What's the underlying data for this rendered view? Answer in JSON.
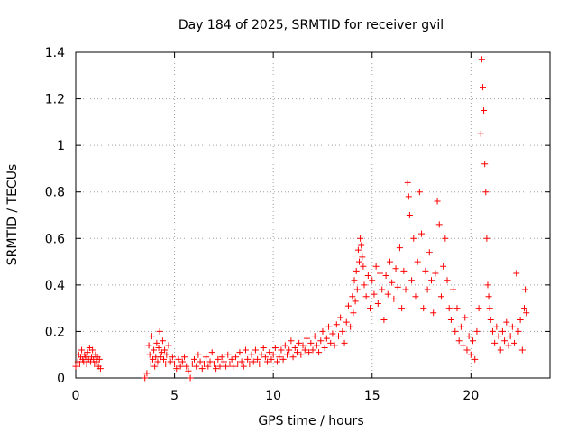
{
  "chart_data": {
    "type": "scatter",
    "title": "Day 184 of 2025, SRMTID for receiver gvil",
    "xlabel": "GPS time / hours",
    "ylabel": "SRMTID / TECUs",
    "xlim": [
      0,
      24
    ],
    "ylim": [
      0,
      1.4
    ],
    "xticks": [
      0,
      5,
      10,
      15,
      20
    ],
    "xtick_labels": [
      "0",
      "5",
      "10",
      "15",
      "20"
    ],
    "yticks": [
      0,
      0.2,
      0.4,
      0.6,
      0.8,
      1.0,
      1.2,
      1.4
    ],
    "ytick_labels": [
      "0",
      "0.2",
      "0.4",
      "0.6",
      "0.8",
      "1",
      "1.2",
      "1.4"
    ],
    "grid": true,
    "marker": "+",
    "color": "#ff0000",
    "series": [
      {
        "name": "SRMTID",
        "points": [
          [
            0.0,
            0.05
          ],
          [
            0.1,
            0.07
          ],
          [
            0.15,
            0.1
          ],
          [
            0.2,
            0.06
          ],
          [
            0.25,
            0.09
          ],
          [
            0.3,
            0.12
          ],
          [
            0.35,
            0.08
          ],
          [
            0.4,
            0.07
          ],
          [
            0.45,
            0.1
          ],
          [
            0.5,
            0.09
          ],
          [
            0.55,
            0.06
          ],
          [
            0.6,
            0.11
          ],
          [
            0.65,
            0.08
          ],
          [
            0.7,
            0.13
          ],
          [
            0.75,
            0.07
          ],
          [
            0.8,
            0.09
          ],
          [
            0.85,
            0.12
          ],
          [
            0.9,
            0.08
          ],
          [
            0.95,
            0.06
          ],
          [
            1.0,
            0.1
          ],
          [
            1.05,
            0.07
          ],
          [
            1.1,
            0.09
          ],
          [
            1.15,
            0.05
          ],
          [
            1.2,
            0.08
          ],
          [
            1.25,
            0.04
          ],
          [
            3.5,
            0.0
          ],
          [
            3.6,
            0.02
          ],
          [
            3.7,
            0.14
          ],
          [
            3.75,
            0.1
          ],
          [
            3.8,
            0.06
          ],
          [
            3.85,
            0.18
          ],
          [
            3.9,
            0.08
          ],
          [
            3.95,
            0.12
          ],
          [
            4.0,
            0.05
          ],
          [
            4.05,
            0.09
          ],
          [
            4.1,
            0.15
          ],
          [
            4.15,
            0.07
          ],
          [
            4.2,
            0.13
          ],
          [
            4.25,
            0.2
          ],
          [
            4.3,
            0.09
          ],
          [
            4.35,
            0.11
          ],
          [
            4.4,
            0.16
          ],
          [
            4.45,
            0.08
          ],
          [
            4.5,
            0.12
          ],
          [
            4.55,
            0.06
          ],
          [
            4.6,
            0.1
          ],
          [
            4.7,
            0.14
          ],
          [
            4.8,
            0.07
          ],
          [
            4.9,
            0.09
          ],
          [
            5.0,
            0.06
          ],
          [
            5.1,
            0.04
          ],
          [
            5.2,
            0.08
          ],
          [
            5.3,
            0.05
          ],
          [
            5.4,
            0.07
          ],
          [
            5.5,
            0.09
          ],
          [
            5.6,
            0.05
          ],
          [
            5.7,
            0.03
          ],
          [
            5.8,
            0.0
          ],
          [
            5.9,
            0.06
          ],
          [
            6.0,
            0.08
          ],
          [
            6.1,
            0.05
          ],
          [
            6.2,
            0.1
          ],
          [
            6.3,
            0.07
          ],
          [
            6.4,
            0.04
          ],
          [
            6.5,
            0.06
          ],
          [
            6.6,
            0.09
          ],
          [
            6.7,
            0.05
          ],
          [
            6.8,
            0.07
          ],
          [
            6.9,
            0.11
          ],
          [
            7.0,
            0.06
          ],
          [
            7.1,
            0.04
          ],
          [
            7.2,
            0.08
          ],
          [
            7.3,
            0.05
          ],
          [
            7.4,
            0.09
          ],
          [
            7.5,
            0.07
          ],
          [
            7.6,
            0.05
          ],
          [
            7.7,
            0.1
          ],
          [
            7.8,
            0.06
          ],
          [
            7.9,
            0.08
          ],
          [
            8.0,
            0.05
          ],
          [
            8.1,
            0.09
          ],
          [
            8.2,
            0.06
          ],
          [
            8.3,
            0.11
          ],
          [
            8.4,
            0.07
          ],
          [
            8.5,
            0.05
          ],
          [
            8.6,
            0.12
          ],
          [
            8.7,
            0.08
          ],
          [
            8.8,
            0.06
          ],
          [
            8.9,
            0.1
          ],
          [
            9.0,
            0.07
          ],
          [
            9.1,
            0.12
          ],
          [
            9.2,
            0.08
          ],
          [
            9.3,
            0.06
          ],
          [
            9.4,
            0.1
          ],
          [
            9.5,
            0.13
          ],
          [
            9.6,
            0.09
          ],
          [
            9.7,
            0.07
          ],
          [
            9.8,
            0.11
          ],
          [
            9.9,
            0.08
          ],
          [
            10.0,
            0.1
          ],
          [
            10.1,
            0.13
          ],
          [
            10.2,
            0.07
          ],
          [
            10.3,
            0.09
          ],
          [
            10.4,
            0.12
          ],
          [
            10.5,
            0.08
          ],
          [
            10.6,
            0.14
          ],
          [
            10.7,
            0.1
          ],
          [
            10.8,
            0.12
          ],
          [
            10.9,
            0.16
          ],
          [
            11.0,
            0.09
          ],
          [
            11.1,
            0.13
          ],
          [
            11.2,
            0.11
          ],
          [
            11.3,
            0.15
          ],
          [
            11.4,
            0.1
          ],
          [
            11.5,
            0.14
          ],
          [
            11.6,
            0.12
          ],
          [
            11.7,
            0.17
          ],
          [
            11.8,
            0.11
          ],
          [
            11.9,
            0.15
          ],
          [
            12.0,
            0.12
          ],
          [
            12.1,
            0.18
          ],
          [
            12.2,
            0.14
          ],
          [
            12.3,
            0.11
          ],
          [
            12.4,
            0.16
          ],
          [
            12.5,
            0.2
          ],
          [
            12.6,
            0.13
          ],
          [
            12.7,
            0.17
          ],
          [
            12.8,
            0.22
          ],
          [
            12.9,
            0.15
          ],
          [
            13.0,
            0.19
          ],
          [
            13.1,
            0.14
          ],
          [
            13.2,
            0.23
          ],
          [
            13.3,
            0.18
          ],
          [
            13.4,
            0.26
          ],
          [
            13.5,
            0.2
          ],
          [
            13.6,
            0.15
          ],
          [
            13.7,
            0.24
          ],
          [
            13.8,
            0.31
          ],
          [
            13.9,
            0.22
          ],
          [
            14.0,
            0.35
          ],
          [
            14.05,
            0.28
          ],
          [
            14.1,
            0.42
          ],
          [
            14.15,
            0.33
          ],
          [
            14.2,
            0.46
          ],
          [
            14.25,
            0.38
          ],
          [
            14.3,
            0.55
          ],
          [
            14.35,
            0.5
          ],
          [
            14.4,
            0.6
          ],
          [
            14.45,
            0.57
          ],
          [
            14.5,
            0.52
          ],
          [
            14.55,
            0.48
          ],
          [
            14.6,
            0.4
          ],
          [
            14.7,
            0.35
          ],
          [
            14.8,
            0.44
          ],
          [
            14.9,
            0.3
          ],
          [
            15.0,
            0.42
          ],
          [
            15.1,
            0.36
          ],
          [
            15.2,
            0.48
          ],
          [
            15.3,
            0.32
          ],
          [
            15.4,
            0.45
          ],
          [
            15.5,
            0.38
          ],
          [
            15.6,
            0.25
          ],
          [
            15.7,
            0.44
          ],
          [
            15.8,
            0.36
          ],
          [
            15.9,
            0.5
          ],
          [
            16.0,
            0.41
          ],
          [
            16.1,
            0.34
          ],
          [
            16.2,
            0.47
          ],
          [
            16.3,
            0.39
          ],
          [
            16.4,
            0.56
          ],
          [
            16.5,
            0.3
          ],
          [
            16.6,
            0.46
          ],
          [
            16.7,
            0.38
          ],
          [
            16.8,
            0.84
          ],
          [
            16.85,
            0.78
          ],
          [
            16.9,
            0.7
          ],
          [
            17.0,
            0.42
          ],
          [
            17.1,
            0.6
          ],
          [
            17.2,
            0.35
          ],
          [
            17.3,
            0.5
          ],
          [
            17.4,
            0.8
          ],
          [
            17.5,
            0.62
          ],
          [
            17.6,
            0.3
          ],
          [
            17.7,
            0.46
          ],
          [
            17.8,
            0.38
          ],
          [
            17.9,
            0.54
          ],
          [
            18.0,
            0.42
          ],
          [
            18.1,
            0.28
          ],
          [
            18.2,
            0.45
          ],
          [
            18.3,
            0.76
          ],
          [
            18.4,
            0.66
          ],
          [
            18.5,
            0.35
          ],
          [
            18.6,
            0.48
          ],
          [
            18.7,
            0.6
          ],
          [
            18.8,
            0.42
          ],
          [
            18.9,
            0.3
          ],
          [
            19.0,
            0.25
          ],
          [
            19.1,
            0.38
          ],
          [
            19.2,
            0.2
          ],
          [
            19.3,
            0.3
          ],
          [
            19.4,
            0.16
          ],
          [
            19.5,
            0.22
          ],
          [
            19.6,
            0.14
          ],
          [
            19.7,
            0.26
          ],
          [
            19.8,
            0.12
          ],
          [
            19.9,
            0.18
          ],
          [
            20.0,
            0.1
          ],
          [
            20.1,
            0.16
          ],
          [
            20.2,
            0.08
          ],
          [
            20.3,
            0.2
          ],
          [
            20.4,
            0.3
          ],
          [
            20.5,
            1.05
          ],
          [
            20.55,
            1.37
          ],
          [
            20.6,
            1.25
          ],
          [
            20.65,
            1.15
          ],
          [
            20.7,
            0.92
          ],
          [
            20.75,
            0.8
          ],
          [
            20.8,
            0.6
          ],
          [
            20.85,
            0.4
          ],
          [
            20.9,
            0.35
          ],
          [
            20.95,
            0.3
          ],
          [
            21.0,
            0.25
          ],
          [
            21.1,
            0.2
          ],
          [
            21.2,
            0.15
          ],
          [
            21.3,
            0.22
          ],
          [
            21.4,
            0.18
          ],
          [
            21.5,
            0.12
          ],
          [
            21.6,
            0.2
          ],
          [
            21.7,
            0.16
          ],
          [
            21.8,
            0.24
          ],
          [
            21.9,
            0.14
          ],
          [
            22.0,
            0.18
          ],
          [
            22.1,
            0.22
          ],
          [
            22.2,
            0.15
          ],
          [
            22.3,
            0.45
          ],
          [
            22.4,
            0.2
          ],
          [
            22.5,
            0.25
          ],
          [
            22.6,
            0.12
          ],
          [
            22.7,
            0.3
          ],
          [
            22.75,
            0.38
          ],
          [
            22.8,
            0.28
          ]
        ]
      }
    ]
  }
}
